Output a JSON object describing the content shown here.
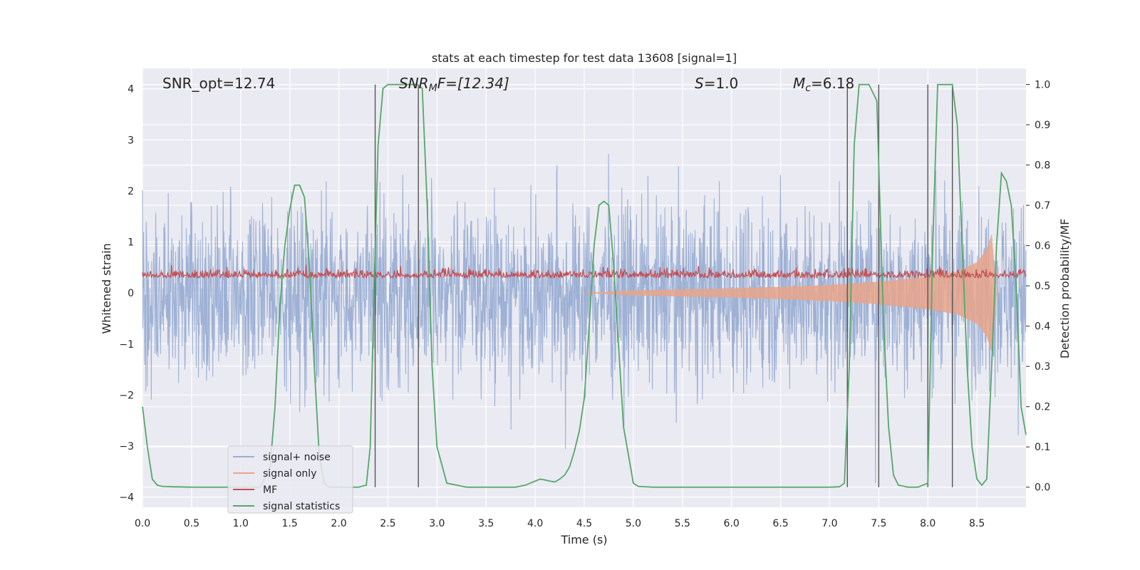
{
  "chart_data": {
    "type": "line",
    "title": "stats at each timestep for test data 13608 [signal=1]",
    "xlabel": "Time (s)",
    "ylabel": "Whitened strain",
    "ylabel_right": "Detection probability/MF",
    "xlim": [
      0.0,
      9.0
    ],
    "ylim": [
      -4.2,
      4.4
    ],
    "ylim_right": [
      -0.05,
      1.04
    ],
    "x_ticks": [
      "0.0",
      "0.5",
      "1.0",
      "1.5",
      "2.0",
      "2.5",
      "3.0",
      "3.5",
      "4.0",
      "4.5",
      "5.0",
      "5.5",
      "6.0",
      "6.5",
      "7.0",
      "7.5",
      "8.0",
      "8.5"
    ],
    "x_tick_values": [
      0.0,
      0.5,
      1.0,
      1.5,
      2.0,
      2.5,
      3.0,
      3.5,
      4.0,
      4.5,
      5.0,
      5.5,
      6.0,
      6.5,
      7.0,
      7.5,
      8.0,
      8.5
    ],
    "y_ticks": [
      "−4",
      "−3",
      "−2",
      "−1",
      "0",
      "1",
      "2",
      "3",
      "4"
    ],
    "y_tick_values": [
      -4,
      -3,
      -2,
      -1,
      0,
      1,
      2,
      3,
      4
    ],
    "y_ticks_right": [
      "0.0",
      "0.1",
      "0.2",
      "0.3",
      "0.4",
      "0.5",
      "0.6",
      "0.7",
      "0.8",
      "0.9",
      "1.0"
    ],
    "y_tick_values_right": [
      0.0,
      0.1,
      0.2,
      0.3,
      0.4,
      0.5,
      0.6,
      0.7,
      0.8,
      0.9,
      1.0
    ],
    "grid": true,
    "legend_position": "lower-left",
    "annotations": {
      "snr_opt": "SNR_opt=12.74",
      "snr_mf_base": "SNR",
      "snr_mf_sub": "M",
      "snr_mf_rest": "F=[12.34]",
      "s_label": "S",
      "s_value": "=1.0",
      "mc_base": "M",
      "mc_sub": "c",
      "mc_value": "=6.18"
    },
    "series": [
      {
        "name": "signal+ noise",
        "color": "#9aaed3",
        "description": "noisy whitened strain, roughly |x| <= 4",
        "amplitude": 1.6,
        "peak": 4.0
      },
      {
        "name": "signal only",
        "color": "#e8a589",
        "envelope_x": [
          4.5,
          5.0,
          5.5,
          6.0,
          6.5,
          7.0,
          7.5,
          8.0,
          8.3,
          8.5,
          8.6,
          8.65,
          8.7
        ],
        "envelope_y": [
          0.0,
          0.05,
          0.07,
          0.09,
          0.12,
          0.16,
          0.22,
          0.32,
          0.42,
          0.6,
          0.85,
          1.15,
          0.0
        ]
      },
      {
        "name": "MF",
        "color": "#c44e52",
        "description": "matched filter output, around 0.5 on right axis",
        "baseline": 0.52,
        "amplitude": 0.015
      },
      {
        "name": "signal statistics",
        "color": "#55a868",
        "x": [
          0.0,
          0.05,
          0.1,
          0.15,
          0.2,
          0.3,
          0.5,
          0.8,
          1.0,
          1.2,
          1.3,
          1.35,
          1.4,
          1.45,
          1.5,
          1.55,
          1.6,
          1.65,
          1.7,
          1.75,
          1.8,
          1.85,
          1.9,
          2.0,
          2.1,
          2.2,
          2.28,
          2.32,
          2.36,
          2.4,
          2.45,
          2.5,
          2.6,
          2.7,
          2.8,
          2.85,
          2.9,
          2.95,
          3.0,
          3.1,
          3.3,
          3.6,
          3.8,
          3.9,
          3.95,
          4.0,
          4.05,
          4.1,
          4.15,
          4.2,
          4.25,
          4.3,
          4.35,
          4.4,
          4.45,
          4.5,
          4.55,
          4.6,
          4.65,
          4.7,
          4.75,
          4.8,
          4.85,
          4.9,
          4.95,
          5.0,
          5.05,
          5.2,
          5.6,
          6.0,
          6.5,
          7.0,
          7.1,
          7.15,
          7.2,
          7.25,
          7.3,
          7.4,
          7.48,
          7.5,
          7.55,
          7.6,
          7.65,
          7.7,
          7.8,
          7.9,
          8.0,
          8.05,
          8.1,
          8.2,
          8.25,
          8.3,
          8.35,
          8.4,
          8.45,
          8.5,
          8.55,
          8.6,
          8.65,
          8.7,
          8.75,
          8.8,
          8.85,
          8.9,
          8.95,
          9.0
        ],
        "y": [
          0.2,
          0.1,
          0.02,
          0.005,
          0.002,
          0.001,
          0.0,
          0.0,
          0.0,
          0.0,
          0.05,
          0.2,
          0.45,
          0.6,
          0.69,
          0.75,
          0.75,
          0.72,
          0.55,
          0.3,
          0.08,
          0.01,
          0.0,
          0.0,
          0.0,
          0.0,
          0.005,
          0.1,
          0.5,
          0.85,
          0.99,
          1.0,
          1.0,
          1.0,
          1.0,
          0.99,
          0.7,
          0.3,
          0.1,
          0.01,
          0.0,
          0.0,
          0.0,
          0.005,
          0.01,
          0.015,
          0.02,
          0.018,
          0.015,
          0.013,
          0.02,
          0.03,
          0.05,
          0.09,
          0.14,
          0.22,
          0.4,
          0.6,
          0.7,
          0.71,
          0.7,
          0.55,
          0.35,
          0.15,
          0.08,
          0.01,
          0.002,
          0.0,
          0.0,
          0.0,
          0.0,
          0.0,
          0.001,
          0.01,
          0.3,
          0.85,
          1.0,
          1.0,
          0.96,
          0.8,
          0.4,
          0.15,
          0.03,
          0.005,
          0.0,
          0.0,
          0.01,
          0.6,
          1.0,
          1.0,
          1.0,
          0.9,
          0.6,
          0.3,
          0.1,
          0.02,
          0.005,
          0.02,
          0.3,
          0.6,
          0.78,
          0.76,
          0.7,
          0.5,
          0.2,
          0.13
        ]
      }
    ],
    "vertical_lines": [
      {
        "x": 2.37,
        "y_bottom": 0.0,
        "y_top": 1.0
      },
      {
        "x": 2.81,
        "y_bottom": 0.0,
        "y_top": 1.0
      },
      {
        "x": 7.18,
        "y_bottom": 0.0,
        "y_top": 1.0
      },
      {
        "x": 7.5,
        "y_bottom": 0.0,
        "y_top": 1.0
      },
      {
        "x": 8.0,
        "y_bottom": 0.0,
        "y_top": 1.0
      },
      {
        "x": 8.25,
        "y_bottom": 0.0,
        "y_top": 1.0
      }
    ],
    "legend": [
      {
        "label": "signal+ noise",
        "color": "#9aaed3"
      },
      {
        "label": "signal only",
        "color": "#e8a589"
      },
      {
        "label": "MF",
        "color": "#c44e52"
      },
      {
        "label": "signal statistics",
        "color": "#55a868"
      }
    ]
  }
}
